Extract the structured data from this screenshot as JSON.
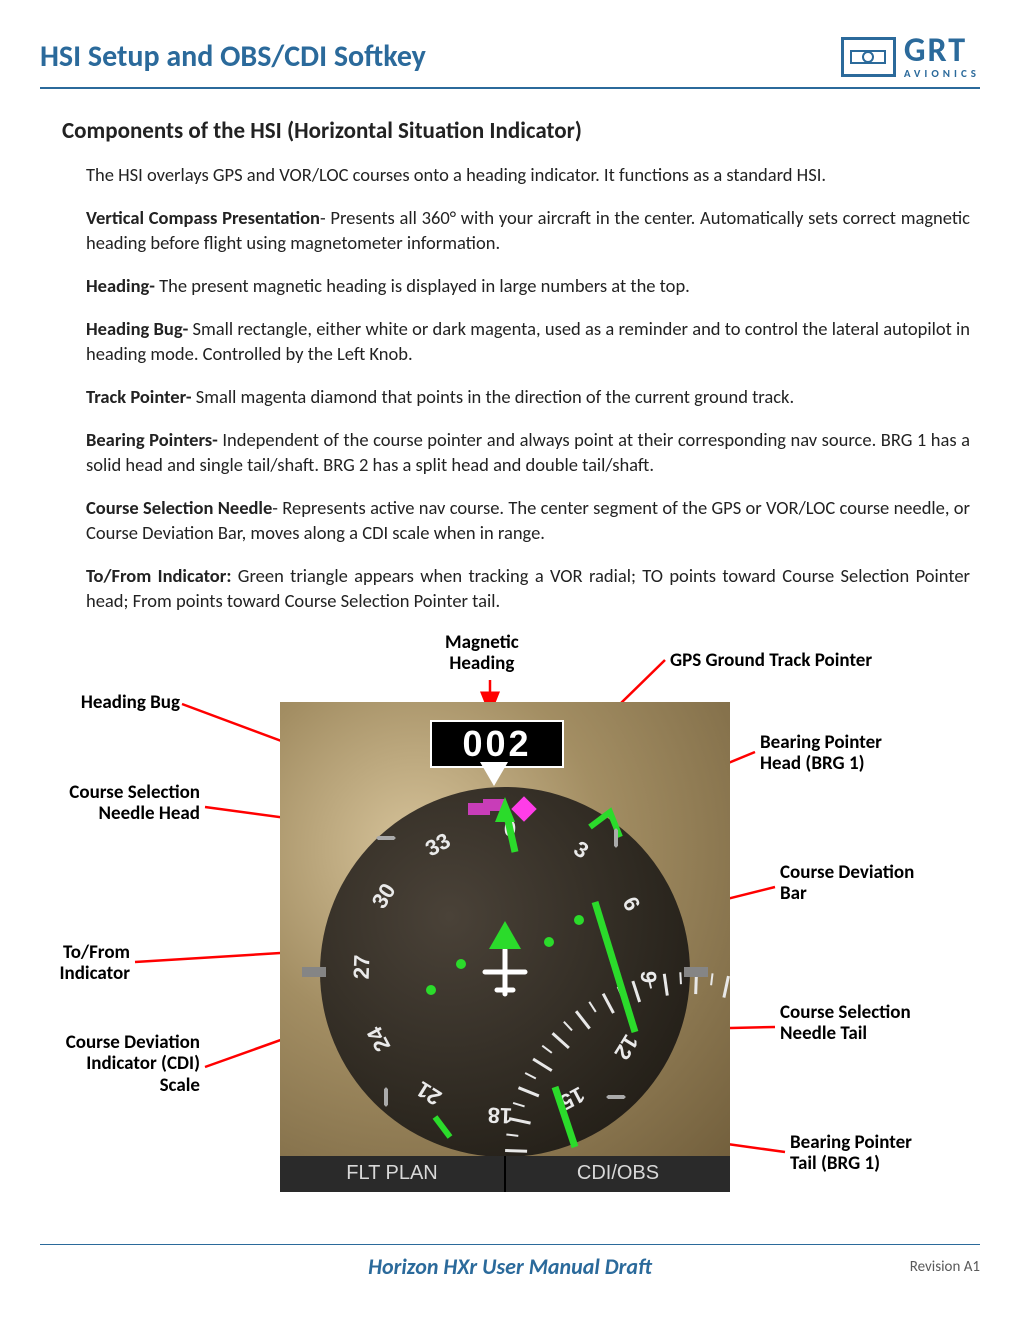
{
  "header": {
    "title": "HSI Setup and OBS/CDI Softkey",
    "logo": {
      "main": "GRT",
      "sub": "AVIONICS"
    }
  },
  "section_title": "Components of the HSI (Horizontal Situation Indicator)",
  "paragraphs": [
    {
      "lead": "",
      "text": "The HSI overlays GPS and VOR/LOC courses onto a heading indicator. It functions as a standard HSI."
    },
    {
      "lead": "Vertical Compass Presentation",
      "sep": "- ",
      "text": "Presents all 360° with your aircraft in the center. Automatically sets correct magnetic heading before flight using magnetometer information."
    },
    {
      "lead": "Heading-",
      "sep": " ",
      "text": "The present magnetic heading is displayed in large numbers at the top."
    },
    {
      "lead": "Heading Bug-",
      "sep": " ",
      "text": "Small rectangle, either white or dark magenta, used as a reminder and to control the lateral autopilot in heading mode. Controlled by the Left Knob."
    },
    {
      "lead": "Track Pointer-",
      "sep": " ",
      "text": "Small magenta diamond that points in the direction of the current ground track."
    },
    {
      "lead": "Bearing Pointers-",
      "sep": " ",
      "text": "Independent of the course pointer and always point at their corresponding nav source. BRG 1 has a solid head and single tail/shaft.  BRG 2 has a split head and double tail/shaft."
    },
    {
      "lead": "Course Selection Needle",
      "sep": "- ",
      "text": "Represents  active nav course. The center segment of the GPS or VOR/LOC course needle, or Course Deviation Bar, moves along a CDI scale when in range."
    },
    {
      "lead": "To/From Indicator:",
      "sep": " ",
      "text": "Green triangle appears when tracking a VOR radial; TO points toward Course Selection Pointer head; From points toward Course Selection Pointer tail."
    }
  ],
  "diagram": {
    "heading_value": "002",
    "softkeys": [
      "FLT PLAN",
      "CDI/OBS"
    ],
    "compass_numbers": [
      "0",
      "3",
      "6",
      "9",
      "12",
      "15",
      "18",
      "21",
      "24",
      "27",
      "30",
      "33"
    ],
    "colors": {
      "needle": "#2bdb2b",
      "bug": "#c83db8",
      "track": "#ff3de8",
      "arrow": "#ff0000",
      "ring_bg": "#2d2820"
    },
    "callouts": {
      "magnetic_heading": "Magnetic\nHeading",
      "gps_track": "GPS Ground Track Pointer",
      "heading_bug": "Heading Bug",
      "course_head": "Course Selection\nNeedle Head",
      "tofrom": "To/From\nIndicator",
      "cdi_scale": "Course Deviation\nIndicator (CDI)\nScale",
      "brg1_head": "Bearing Pointer\nHead (BRG 1)",
      "cdi_bar": "Course Deviation\nBar",
      "course_tail": "Course Selection\nNeedle Tail",
      "brg1_tail": "Bearing Pointer\nTail (BRG 1)"
    }
  },
  "footer": {
    "title": "Horizon HXr User Manual Draft",
    "revision": "Revision A1"
  }
}
